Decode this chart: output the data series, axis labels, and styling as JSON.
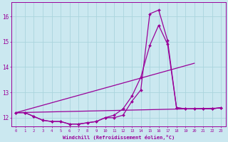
{
  "xlabel": "Windchill (Refroidissement éolien,°C)",
  "background_color": "#cbe8f0",
  "line_color": "#990099",
  "grid_color": "#aad4dd",
  "xlim": [
    -0.5,
    23.5
  ],
  "ylim": [
    11.65,
    16.55
  ],
  "yticks": [
    12,
    13,
    14,
    15,
    16
  ],
  "xticks": [
    0,
    1,
    2,
    3,
    4,
    5,
    6,
    7,
    8,
    9,
    10,
    11,
    12,
    13,
    14,
    15,
    16,
    17,
    18,
    19,
    20,
    21,
    22,
    23
  ],
  "series_curves": [
    {
      "x": [
        0,
        1,
        2,
        3,
        4,
        5,
        6,
        7,
        8,
        9,
        10,
        11,
        12,
        13,
        14,
        15,
        16,
        17,
        18,
        19,
        20,
        21,
        22,
        23
      ],
      "y": [
        12.2,
        12.2,
        12.05,
        11.9,
        11.85,
        11.85,
        11.75,
        11.75,
        11.8,
        11.85,
        12.0,
        12.0,
        12.1,
        12.65,
        13.1,
        16.1,
        16.25,
        15.05,
        12.4,
        12.35,
        12.35,
        12.35,
        12.35,
        12.4
      ]
    },
    {
      "x": [
        0,
        1,
        2,
        3,
        4,
        5,
        6,
        7,
        8,
        9,
        10,
        11,
        12,
        13,
        14,
        15,
        16,
        17,
        18,
        19,
        20,
        21,
        22,
        23
      ],
      "y": [
        12.2,
        12.2,
        12.05,
        11.9,
        11.85,
        11.85,
        11.75,
        11.75,
        11.8,
        11.85,
        12.0,
        12.1,
        12.35,
        12.85,
        13.6,
        14.85,
        15.65,
        14.9,
        12.4,
        12.35,
        12.35,
        12.35,
        12.35,
        12.4
      ]
    }
  ],
  "series_lines": [
    {
      "x": [
        0,
        23
      ],
      "y": [
        12.2,
        12.38
      ]
    },
    {
      "x": [
        0,
        20
      ],
      "y": [
        12.2,
        14.15
      ]
    }
  ]
}
